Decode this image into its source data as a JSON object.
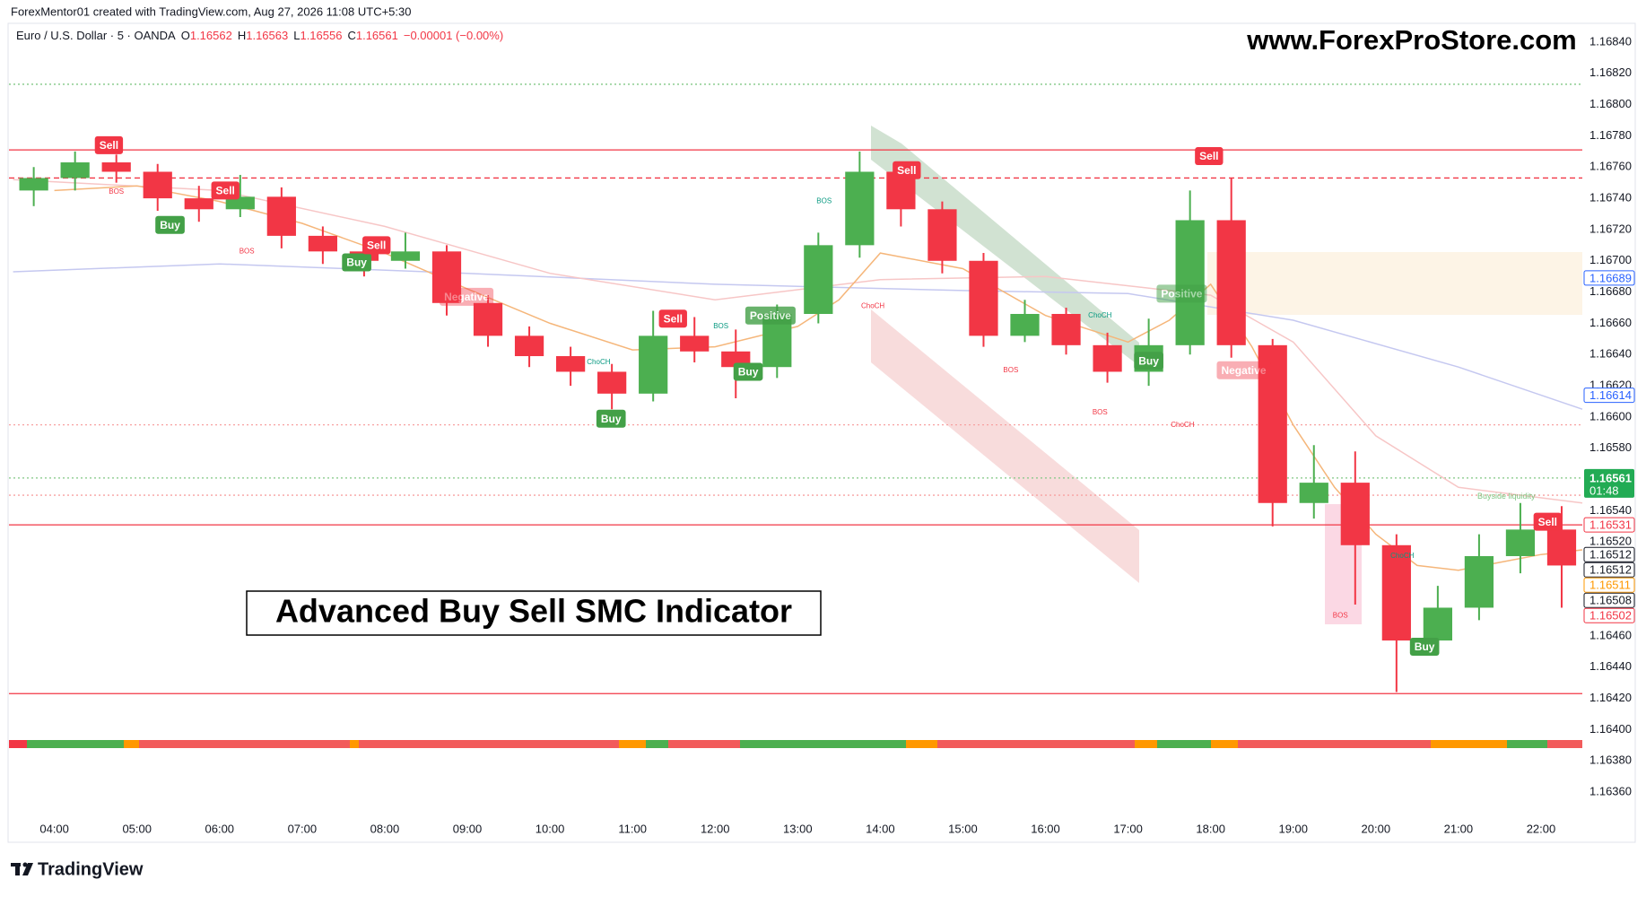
{
  "header": {
    "attribution": "ForexMentor01 created with TradingView.com, Aug 27, 2026 11:08 UTC+5:30"
  },
  "footer": {
    "brand": "TradingView"
  },
  "chart_data": {
    "type": "candlestick",
    "symbol": "Euro / U.S. Dollar · 5 · OANDA",
    "ohlc_header": [
      {
        "label": "O",
        "value": 1.16562
      },
      {
        "label": "H",
        "value": 1.16563
      },
      {
        "label": "L",
        "value": 1.16556
      },
      {
        "label": "C",
        "value": 1.16561
      }
    ],
    "change": "−0.00001 (−0.00%)",
    "watermark": "www.ForexProStore.com",
    "title": "Advanced Buy Sell SMC Indicator",
    "up_color": "#4caf50",
    "down_color": "#f23645",
    "xlim": [
      3.45,
      22.5
    ],
    "xticks": [
      {
        "value": 4,
        "label": "04:00"
      },
      {
        "value": 5,
        "label": "05:00"
      },
      {
        "value": 6,
        "label": "06:00"
      },
      {
        "value": 7,
        "label": "07:00"
      },
      {
        "value": 8,
        "label": "08:00"
      },
      {
        "value": 9,
        "label": "09:00"
      },
      {
        "value": 10,
        "label": "10:00"
      },
      {
        "value": 11,
        "label": "11:00"
      },
      {
        "value": 12,
        "label": "12:00"
      },
      {
        "value": 13,
        "label": "13:00"
      },
      {
        "value": 14,
        "label": "14:00"
      },
      {
        "value": 15,
        "label": "15:00"
      },
      {
        "value": 16,
        "label": "16:00"
      },
      {
        "value": 17,
        "label": "17:00"
      },
      {
        "value": 18,
        "label": "18:00"
      },
      {
        "value": 19,
        "label": "19:00"
      },
      {
        "value": 20,
        "label": "20:00"
      },
      {
        "value": 21,
        "label": "21:00"
      },
      {
        "value": 22,
        "label": "22:00"
      }
    ],
    "ylim": [
      1.16329,
      1.16852
    ],
    "yticks": [
      {
        "value": 1.1636,
        "label": "1.16360"
      },
      {
        "value": 1.1638,
        "label": "1.16380"
      },
      {
        "value": 1.164,
        "label": "1.16400"
      },
      {
        "value": 1.1642,
        "label": "1.16420"
      },
      {
        "value": 1.1644,
        "label": "1.16440"
      },
      {
        "value": 1.1646,
        "label": "1.16460"
      },
      {
        "value": 1.1648,
        "label": "1.16480"
      },
      {
        "value": 1.165,
        "label": "1.16500"
      },
      {
        "value": 1.1652,
        "label": "1.16520"
      },
      {
        "value": 1.1654,
        "label": "1.16540"
      },
      {
        "value": 1.1658,
        "label": "1.16580"
      },
      {
        "value": 1.166,
        "label": "1.16600"
      },
      {
        "value": 1.1662,
        "label": "1.16620"
      },
      {
        "value": 1.1664,
        "label": "1.16640"
      },
      {
        "value": 1.1666,
        "label": "1.16660"
      },
      {
        "value": 1.1668,
        "label": "1.16680"
      },
      {
        "value": 1.167,
        "label": "1.16700"
      },
      {
        "value": 1.1672,
        "label": "1.16720"
      },
      {
        "value": 1.1674,
        "label": "1.16740"
      },
      {
        "value": 1.1676,
        "label": "1.16760"
      },
      {
        "value": 1.1678,
        "label": "1.16780"
      },
      {
        "value": 1.168,
        "label": "1.16800"
      },
      {
        "value": 1.1682,
        "label": "1.16820"
      },
      {
        "value": 1.1684,
        "label": "1.16840"
      }
    ],
    "x": [
      3.75,
      4.25,
      4.75,
      5.25,
      5.75,
      6.25,
      6.75,
      7.25,
      7.75,
      8.25,
      8.75,
      9.25,
      9.75,
      10.25,
      10.75,
      11.25,
      11.75,
      12.25,
      12.75,
      13.25,
      13.75,
      14.25,
      14.75,
      15.25,
      15.75,
      16.25,
      16.75,
      17.25,
      17.75,
      18.25,
      18.75,
      19.25,
      19.75,
      20.25,
      20.75,
      21.25,
      21.75,
      22.25
    ],
    "open": [
      1.16745,
      1.16753,
      1.16763,
      1.16757,
      1.1674,
      1.16733,
      1.16741,
      1.16716,
      1.16706,
      1.167,
      1.16706,
      1.16673,
      1.16652,
      1.16639,
      1.16629,
      1.16615,
      1.16652,
      1.16642,
      1.16632,
      1.16666,
      1.1671,
      1.16757,
      1.16733,
      1.167,
      1.16652,
      1.16666,
      1.16646,
      1.16629,
      1.16646,
      1.16726,
      1.16646,
      1.16545,
      1.16558,
      1.16518,
      1.16457,
      1.16478,
      1.16511,
      1.16528
    ],
    "high": [
      1.1676,
      1.1677,
      1.16768,
      1.16762,
      1.16748,
      1.16755,
      1.16747,
      1.16722,
      1.1671,
      1.16718,
      1.1671,
      1.16678,
      1.16658,
      1.16645,
      1.16634,
      1.16668,
      1.16664,
      1.16656,
      1.16672,
      1.16718,
      1.1677,
      1.16762,
      1.16738,
      1.16705,
      1.16675,
      1.1667,
      1.16654,
      1.16663,
      1.16745,
      1.16753,
      1.1665,
      1.16582,
      1.16578,
      1.16525,
      1.16492,
      1.16525,
      1.16545,
      1.16543
    ],
    "low": [
      1.16735,
      1.16745,
      1.1675,
      1.16732,
      1.16725,
      1.16728,
      1.16708,
      1.16698,
      1.1669,
      1.16695,
      1.16665,
      1.16645,
      1.16632,
      1.1662,
      1.16605,
      1.1661,
      1.16635,
      1.16612,
      1.16625,
      1.1666,
      1.16702,
      1.16722,
      1.16692,
      1.16645,
      1.16648,
      1.1664,
      1.16622,
      1.1662,
      1.1664,
      1.16638,
      1.1653,
      1.16535,
      1.1648,
      1.16424,
      1.16448,
      1.1647,
      1.165,
      1.16478
    ],
    "close": [
      1.16753,
      1.16763,
      1.16757,
      1.1674,
      1.16733,
      1.16741,
      1.16716,
      1.16706,
      1.167,
      1.16706,
      1.16673,
      1.16652,
      1.16639,
      1.16629,
      1.16615,
      1.16652,
      1.16642,
      1.16632,
      1.16666,
      1.1671,
      1.16757,
      1.16733,
      1.167,
      1.16652,
      1.16666,
      1.16646,
      1.16629,
      1.16646,
      1.16726,
      1.16646,
      1.16545,
      1.16558,
      1.16518,
      1.16457,
      1.16478,
      1.16511,
      1.16528,
      1.16505
    ],
    "moving_averages": [
      {
        "color": "#c5c8f0",
        "x": [
          3.5,
          6,
          9,
          12,
          15,
          17,
          19,
          21,
          22.5
        ],
        "values": [
          1.16693,
          1.16698,
          1.16692,
          1.16685,
          1.16681,
          1.16679,
          1.16662,
          1.16632,
          1.16605
        ]
      },
      {
        "color": "#f7c6c6",
        "x": [
          3.5,
          6,
          8,
          10,
          12,
          14,
          16,
          18,
          19,
          20,
          21,
          22.5
        ],
        "values": [
          1.16752,
          1.16745,
          1.16722,
          1.16692,
          1.16675,
          1.16688,
          1.1669,
          1.16678,
          1.16648,
          1.16588,
          1.16555,
          1.16545
        ]
      },
      {
        "color": "#f5b67a",
        "x": [
          4,
          5,
          6,
          7,
          8,
          9,
          10,
          11,
          12,
          13,
          13.5,
          14,
          15,
          16,
          17,
          17.5,
          18,
          18.5,
          19,
          19.5,
          20,
          20.5,
          21,
          22,
          22.5
        ],
        "values": [
          1.16745,
          1.16748,
          1.16738,
          1.16724,
          1.16705,
          1.16682,
          1.1666,
          1.16643,
          1.16645,
          1.16658,
          1.16675,
          1.16705,
          1.16695,
          1.16665,
          1.16648,
          1.16662,
          1.16685,
          1.16645,
          1.16595,
          1.16555,
          1.16525,
          1.16505,
          1.16502,
          1.16512,
          1.16515
        ]
      }
    ],
    "levels": [
      {
        "value": 1.16813,
        "color": "#81c784",
        "style": "dotted"
      },
      {
        "value": 1.16771,
        "color": "#f23645",
        "style": "solid"
      },
      {
        "value": 1.16753,
        "color": "#f23645",
        "style": "dashed"
      },
      {
        "value": 1.16595,
        "color": "#f7a1a1",
        "style": "dotted"
      },
      {
        "value": 1.16561,
        "color": "#81c784",
        "style": "dotted"
      },
      {
        "value": 1.1655,
        "color": "#f7a1a1",
        "style": "dotted"
      },
      {
        "value": 1.16531,
        "color": "#f23645",
        "style": "solid"
      },
      {
        "value": 1.16423,
        "color": "#f23645",
        "style": "solid"
      }
    ],
    "signals": [
      {
        "label": "Sell",
        "x": 4.66,
        "price": 1.16774,
        "color": "#f23645",
        "opacity": 1
      },
      {
        "label": "Buy",
        "x": 5.4,
        "price": 1.16723,
        "color": "#43a047",
        "opacity": 1
      },
      {
        "label": "Sell",
        "x": 6.07,
        "price": 1.16745,
        "color": "#f23645",
        "opacity": 1
      },
      {
        "label": "Buy",
        "x": 7.66,
        "price": 1.16699,
        "color": "#43a047",
        "opacity": 1
      },
      {
        "label": "Sell",
        "x": 7.9,
        "price": 1.1671,
        "color": "#f23645",
        "opacity": 1
      },
      {
        "label": "Negative",
        "x": 8.99,
        "price": 1.16677,
        "color": "#f23645",
        "opacity": 0.4
      },
      {
        "label": "Buy",
        "x": 10.74,
        "price": 1.16599,
        "color": "#43a047",
        "opacity": 1
      },
      {
        "label": "Sell",
        "x": 11.49,
        "price": 1.16663,
        "color": "#f23645",
        "opacity": 1
      },
      {
        "label": "Buy",
        "x": 12.4,
        "price": 1.16629,
        "color": "#43a047",
        "opacity": 1
      },
      {
        "label": "Positive",
        "x": 12.67,
        "price": 1.16665,
        "color": "#43a047",
        "opacity": 0.8
      },
      {
        "label": "Sell",
        "x": 14.32,
        "price": 1.16758,
        "color": "#f23645",
        "opacity": 1
      },
      {
        "label": "Buy",
        "x": 17.25,
        "price": 1.16636,
        "color": "#43a047",
        "opacity": 1
      },
      {
        "label": "Positive",
        "x": 17.65,
        "price": 1.16679,
        "color": "#43a047",
        "opacity": 0.5
      },
      {
        "label": "Sell",
        "x": 17.98,
        "price": 1.16767,
        "color": "#f23645",
        "opacity": 1
      },
      {
        "label": "Negative",
        "x": 18.4,
        "price": 1.1663,
        "color": "#f23645",
        "opacity": 0.4
      },
      {
        "label": "Buy",
        "x": 20.59,
        "price": 1.16453,
        "color": "#43a047",
        "opacity": 1
      },
      {
        "label": "Sell",
        "x": 22.08,
        "price": 1.16533,
        "color": "#f23645",
        "opacity": 1
      }
    ],
    "structure_labels": [
      {
        "label": "BOS",
        "x": 4.75,
        "price": 1.16744,
        "color": "#f23645"
      },
      {
        "label": "BOS",
        "x": 6.33,
        "price": 1.16706,
        "color": "#f23645"
      },
      {
        "label": "ChoCH",
        "x": 10.59,
        "price": 1.16635,
        "color": "#089981"
      },
      {
        "label": "BOS",
        "x": 12.07,
        "price": 1.16658,
        "color": "#089981"
      },
      {
        "label": "BOS",
        "x": 13.32,
        "price": 1.16738,
        "color": "#089981"
      },
      {
        "label": "ChoCH",
        "x": 13.91,
        "price": 1.16671,
        "color": "#f23645"
      },
      {
        "label": "BOS",
        "x": 15.58,
        "price": 1.1663,
        "color": "#f23645"
      },
      {
        "label": "ChoCH",
        "x": 16.66,
        "price": 1.16665,
        "color": "#089981"
      },
      {
        "label": "BOS",
        "x": 16.66,
        "price": 1.16603,
        "color": "#f23645"
      },
      {
        "label": "ChoCH",
        "x": 17.66,
        "price": 1.16595,
        "color": "#f23645"
      },
      {
        "label": "BOS",
        "x": 19.57,
        "price": 1.16473,
        "color": "#f23645"
      },
      {
        "label": "ChoCH",
        "x": 20.32,
        "price": 1.16511,
        "color": "#089981"
      }
    ],
    "liquidity_label": {
      "text": "Buyside liquidity",
      "x": 21.58,
      "price": 1.16549,
      "color": "#81c784"
    },
    "price_badges": [
      {
        "value": 1.16689,
        "color": "#2962ff"
      },
      {
        "value": 1.16614,
        "color": "#2962ff"
      },
      {
        "value": 1.16531,
        "color": "#f23645"
      },
      {
        "value": 1.16512,
        "color": "#131722"
      },
      {
        "value": 1.16512,
        "color": "#131722"
      },
      {
        "value": 1.16511,
        "color": "#ff9800"
      },
      {
        "value": 1.16508,
        "color": "#131722"
      },
      {
        "value": 1.16502,
        "color": "#f23645"
      }
    ],
    "current_price": {
      "value": 1.16561,
      "countdown": "01:48",
      "color": "#22ab54"
    }
  }
}
